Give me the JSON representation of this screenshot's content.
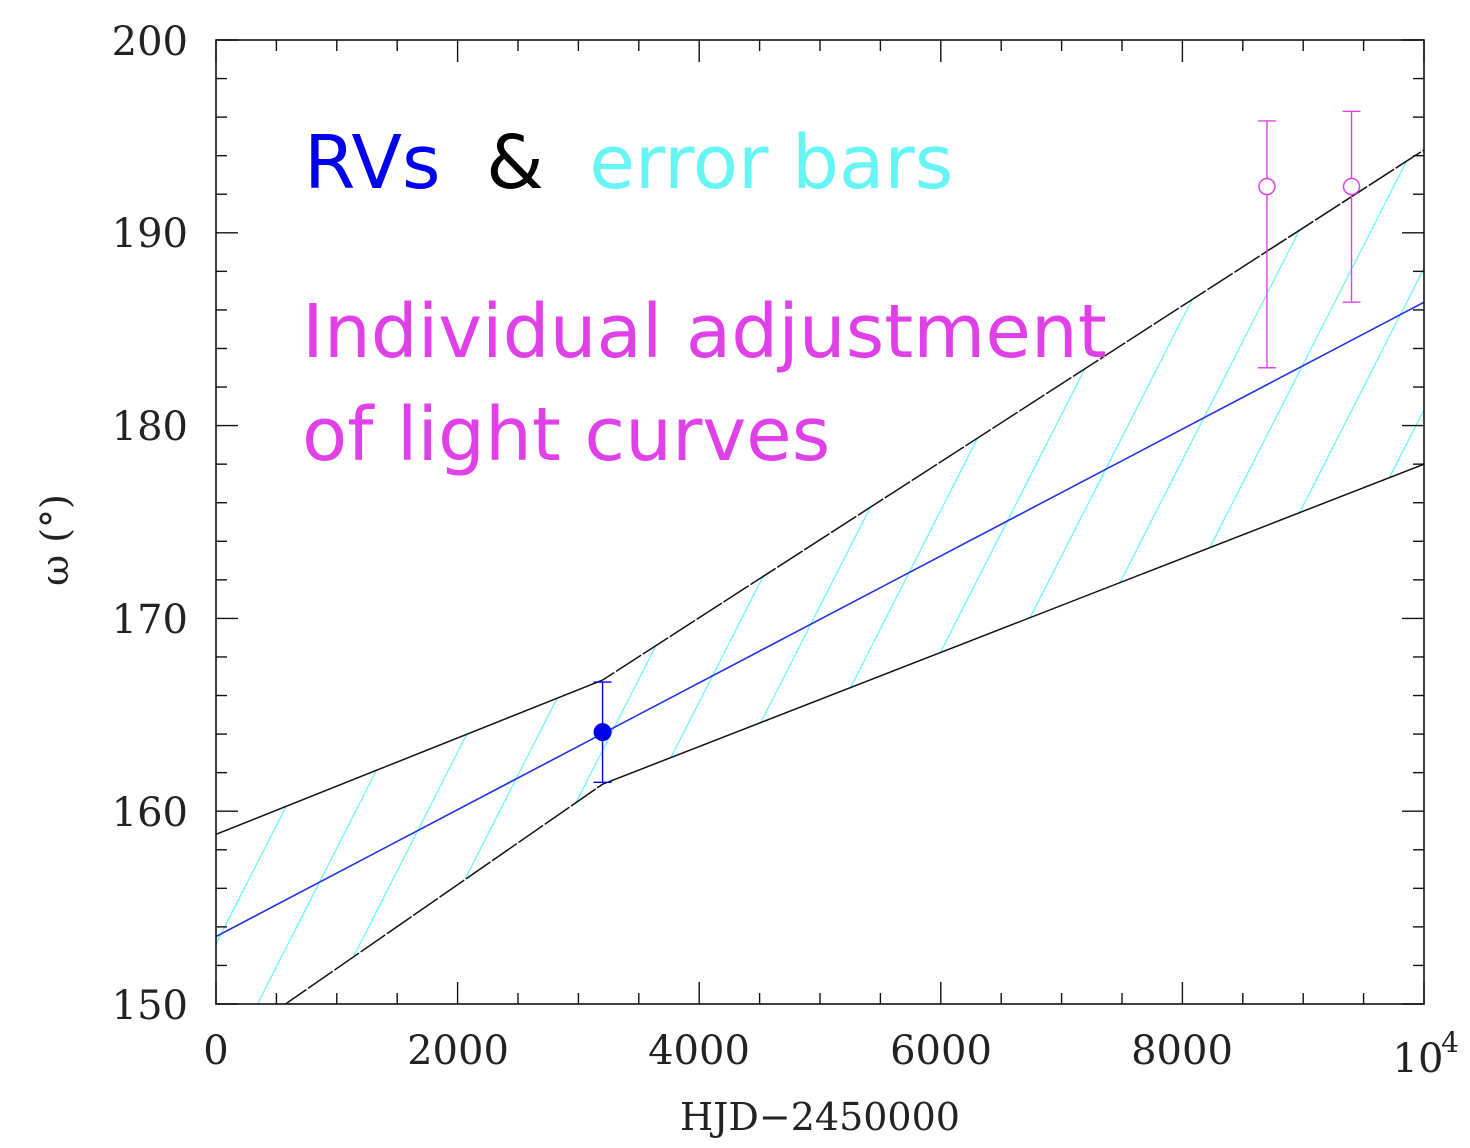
{
  "chart_data": {
    "type": "line",
    "title": "",
    "xlabel": "HJD−2450000",
    "ylabel": "ω (°)",
    "xlim": [
      0,
      10000
    ],
    "ylim": [
      150,
      200
    ],
    "x_ticks": [
      "0",
      "2000",
      "4000",
      "6000",
      "8000"
    ],
    "x_tick_last": {
      "base": "10",
      "exponent": "4"
    },
    "y_ticks": [
      "150",
      "160",
      "170",
      "180",
      "190",
      "200"
    ],
    "grid": false,
    "annotations": [
      {
        "parts": [
          {
            "text": "RVs",
            "color": "#0000ee"
          },
          {
            "text": "&",
            "color": "#000000"
          },
          {
            "text": "error bars",
            "color": "#66f5f5"
          }
        ]
      },
      {
        "lines": [
          "Individual adjustment",
          "of light curves"
        ],
        "color": "#e040e8"
      }
    ],
    "series": [
      {
        "role": "fit",
        "color": "#2233dd",
        "x": [
          0,
          10000
        ],
        "y": [
          153.5,
          186.4
        ]
      },
      {
        "role": "upper-envelope",
        "color": "#111111",
        "x": [
          0,
          3200,
          10000
        ],
        "y": [
          158.8,
          166.8,
          194.3
        ]
      },
      {
        "role": "lower-envelope",
        "color": "#111111",
        "x": [
          0,
          3200,
          10000
        ],
        "y": [
          147.5,
          161.4,
          178.0
        ]
      }
    ],
    "points": [
      {
        "x": 3200,
        "y": 164.1,
        "yerr_low": 161.5,
        "yerr_high": 166.7,
        "marker": "filled-circle",
        "color": "#0000ee"
      },
      {
        "x": 8700,
        "y": 192.4,
        "yerr_low": 183.0,
        "yerr_high": 195.8,
        "marker": "open-circle",
        "color": "#e040e8"
      },
      {
        "x": 9400,
        "y": 192.4,
        "yerr_low": 186.4,
        "yerr_high": 196.3,
        "marker": "open-circle",
        "color": "#e040e8"
      }
    ],
    "hatch": {
      "between": [
        "upper-envelope",
        "lower-envelope"
      ],
      "color": "#66f5f5"
    }
  }
}
